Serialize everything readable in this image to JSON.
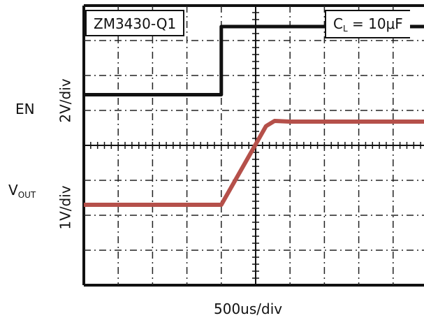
{
  "chart_data": {
    "type": "line",
    "instrument_title": "ZM3430-Q1",
    "condition": {
      "label": "C",
      "sub": "L",
      "value": " = 10μF"
    },
    "x_scale_label": "500us/div",
    "x_divisions": 10,
    "x_units": "div",
    "channels": [
      {
        "name": "EN",
        "scale_label": "2V/div",
        "color": "#111111",
        "points": [
          [
            0,
            1.45
          ],
          [
            4.0,
            1.45
          ],
          [
            4.0,
            3.4
          ],
          [
            10,
            3.4
          ]
        ]
      },
      {
        "name": "V",
        "name_sub": "OUT",
        "scale_label": "1V/div",
        "color": "#b5504a",
        "points": [
          [
            0,
            -1.7
          ],
          [
            4.0,
            -1.7
          ],
          [
            5.3,
            0.55
          ],
          [
            5.55,
            0.7
          ],
          [
            6.0,
            0.68
          ],
          [
            10,
            0.68
          ]
        ]
      }
    ]
  }
}
